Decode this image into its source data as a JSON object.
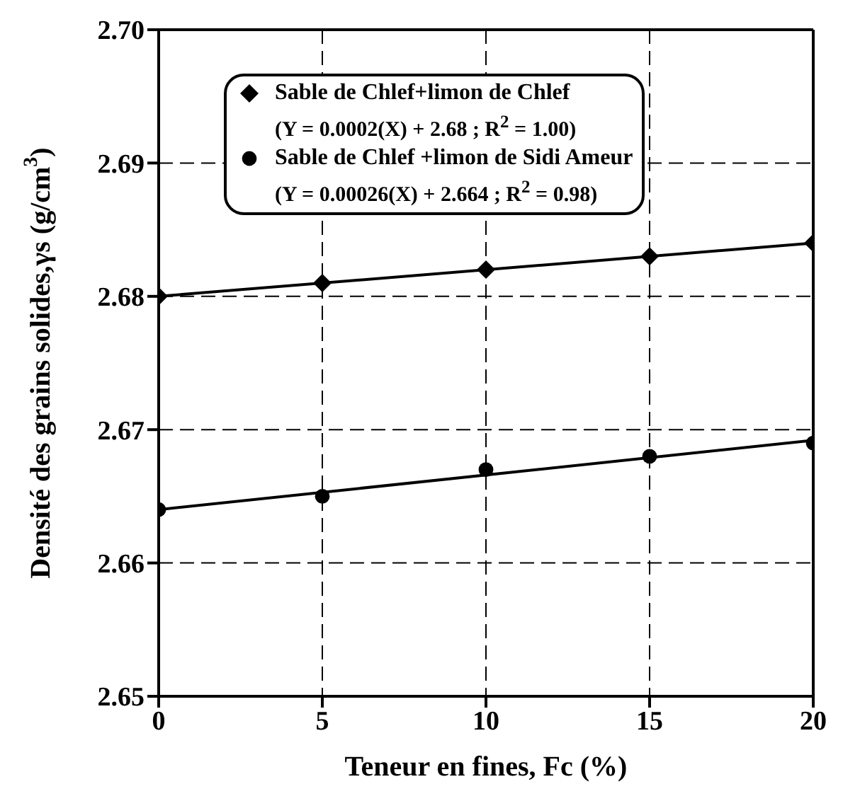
{
  "chart_data": {
    "type": "scatter",
    "xlabel": "Teneur en fines, Fc (%)",
    "ylabel": "Densité des grains solides,γs (g/cm$^{3}$)",
    "xlim": [
      0,
      20
    ],
    "xticks": [
      0,
      5,
      10,
      15,
      20
    ],
    "ylim": [
      2.65,
      2.7
    ],
    "yticks": [
      2.65,
      2.66,
      2.67,
      2.68,
      2.69,
      {
        "value": 2.7,
        "label": "2.70"
      }
    ],
    "grid": true,
    "legend": "top",
    "annotations": [
      "(Y = 0.0002(X) + 2.68 ; R$^{2}$ = 1.00)",
      "(Y = 0.00026(X) + 2.664 ; R$^{2}$ = 0.98)"
    ],
    "series": [
      {
        "name": "Sable de Chlef+limon de Chlef",
        "marker": "diamond",
        "color": "#000000",
        "x": [
          0,
          5,
          10,
          15,
          20
        ],
        "values": [
          2.68,
          2.681,
          2.682,
          2.683,
          2.684
        ]
      },
      {
        "name": "Sable de Chlef +limon de Sidi Ameur",
        "marker": "circle",
        "color": "#000000",
        "x": [
          0,
          5,
          10,
          15,
          20
        ],
        "values": [
          2.664,
          2.665,
          2.667,
          2.668,
          2.669
        ]
      },
      {
        "type": "line",
        "line_style": "solid",
        "color": "#000000",
        "x": [
          0,
          20
        ],
        "values": [
          2.68,
          2.684
        ]
      },
      {
        "type": "line",
        "line_style": "solid",
        "color": "#000000",
        "x": [
          0,
          20
        ],
        "values": [
          2.664,
          2.6692
        ]
      }
    ]
  }
}
